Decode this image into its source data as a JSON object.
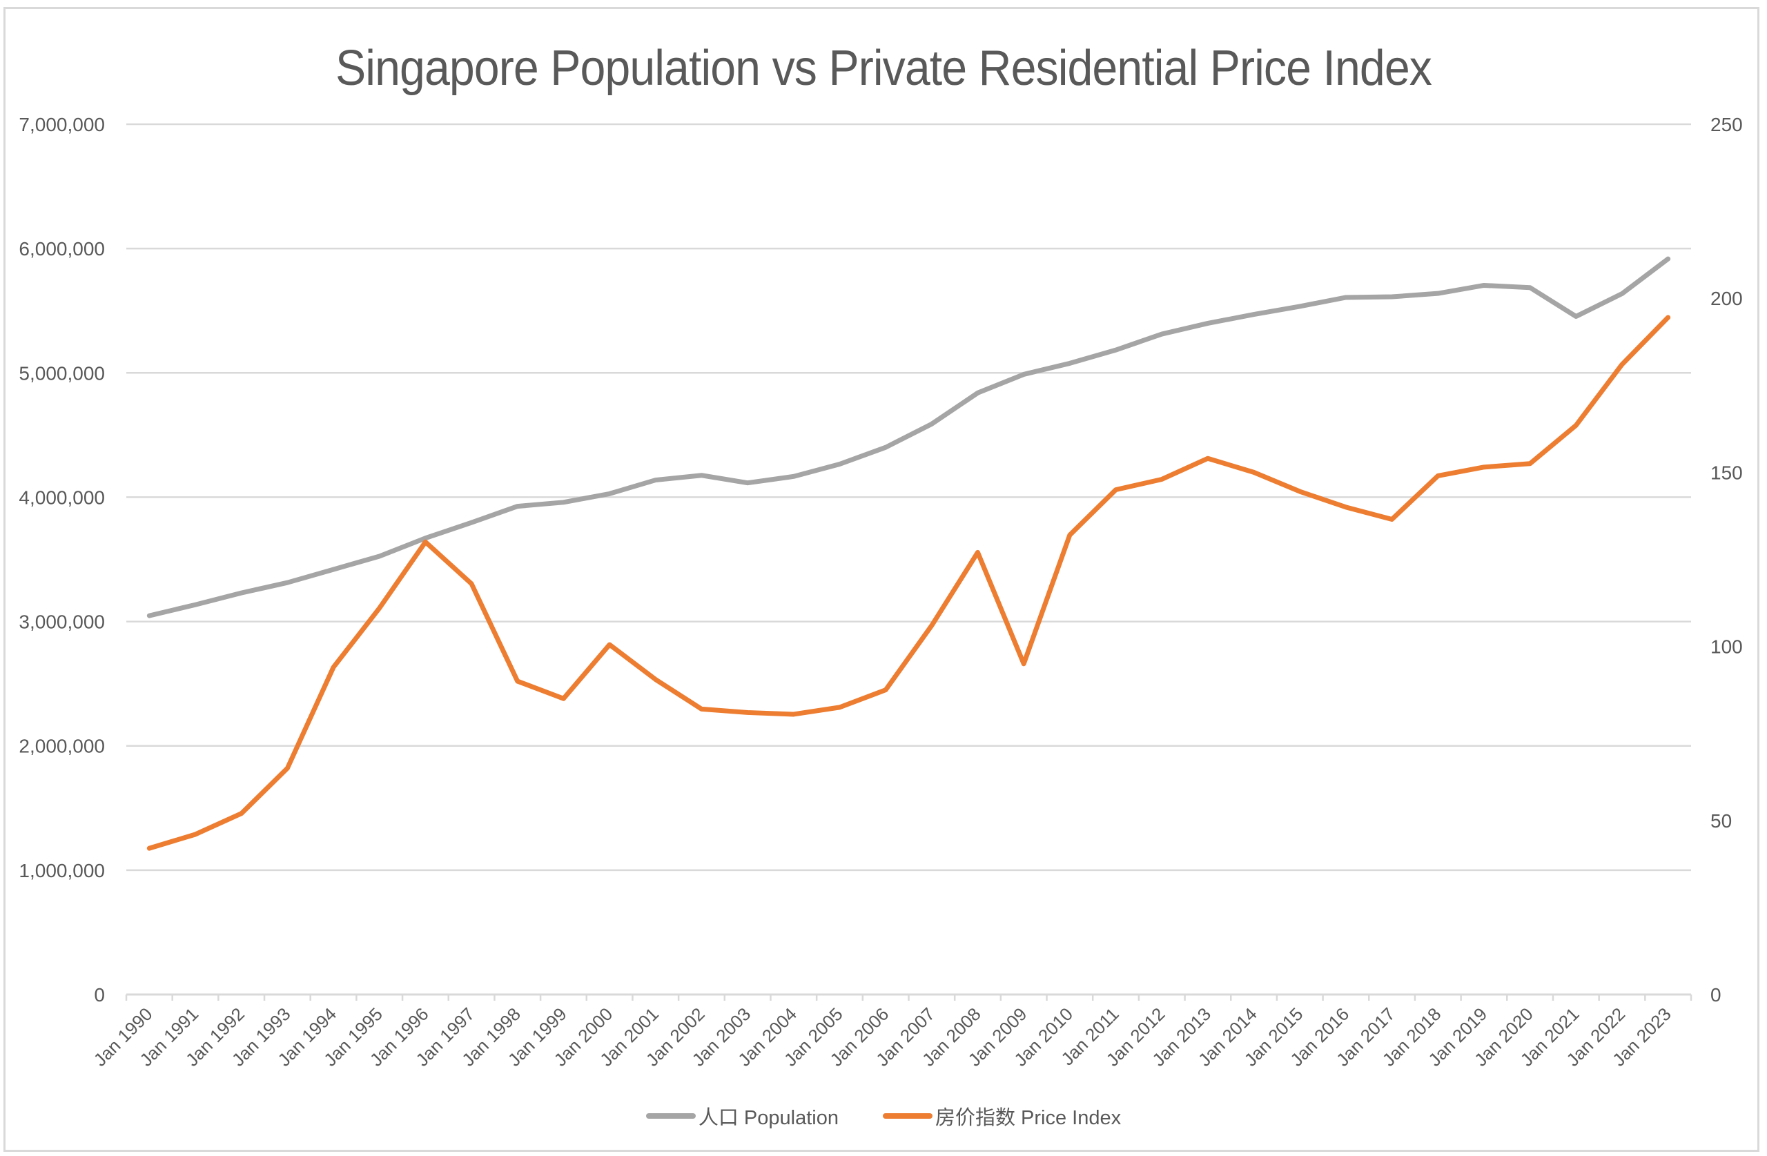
{
  "chart_data": {
    "type": "line",
    "title": "Singapore Population vs Private Residential Price Index",
    "xlabel": "",
    "ylabel": "",
    "categories": [
      "Jan 1990",
      "Jan 1991",
      "Jan 1992",
      "Jan 1993",
      "Jan 1994",
      "Jan 1995",
      "Jan 1996",
      "Jan 1997",
      "Jan 1998",
      "Jan 1999",
      "Jan 2000",
      "Jan 2001",
      "Jan 2002",
      "Jan 2003",
      "Jan 2004",
      "Jan 2005",
      "Jan 2006",
      "Jan 2007",
      "Jan 2008",
      "Jan 2009",
      "Jan 2010",
      "Jan 2011",
      "Jan 2012",
      "Jan 2013",
      "Jan 2014",
      "Jan 2015",
      "Jan 2016",
      "Jan 2017",
      "Jan 2018",
      "Jan 2019",
      "Jan 2020",
      "Jan 2021",
      "Jan 2022",
      "Jan 2023"
    ],
    "series": [
      {
        "name": "人口 Population",
        "axis": "left",
        "color": "#A5A5A5",
        "values": [
          3047000,
          3135000,
          3230000,
          3313000,
          3419000,
          3525000,
          3671000,
          3796000,
          3927000,
          3959000,
          4028000,
          4138000,
          4176000,
          4115000,
          4167000,
          4266000,
          4401000,
          4589000,
          4839000,
          4988000,
          5077000,
          5184000,
          5312000,
          5399000,
          5470000,
          5535000,
          5607000,
          5612000,
          5639000,
          5704000,
          5686000,
          5454000,
          5637000,
          5917000
        ]
      },
      {
        "name": "房价指数 Price Index",
        "axis": "right",
        "color": "#ED7D31",
        "values": [
          42,
          46,
          52,
          65,
          94,
          111,
          130,
          118,
          90,
          85,
          100.5,
          90.5,
          82,
          81,
          80.5,
          82.5,
          87.5,
          106,
          127,
          95,
          132,
          145,
          148,
          154,
          150,
          144.5,
          140,
          136.5,
          149,
          151.5,
          152.5,
          163.5,
          181,
          194.5
        ]
      }
    ],
    "y_left": {
      "ylim": [
        0,
        7000000
      ],
      "ticks": [
        0,
        1000000,
        2000000,
        3000000,
        4000000,
        5000000,
        6000000,
        7000000
      ],
      "tick_labels": [
        "0",
        "1,000,000",
        "2,000,000",
        "3,000,000",
        "4,000,000",
        "5,000,000",
        "6,000,000",
        "7,000,000"
      ]
    },
    "y_right": {
      "ylim": [
        0,
        250
      ],
      "ticks": [
        0,
        50,
        100,
        150,
        200,
        250
      ],
      "tick_labels": [
        "0",
        "50",
        "100",
        "150",
        "200",
        "250"
      ]
    },
    "grid": true,
    "legend_position": "bottom"
  },
  "colors": {
    "gridline": "#d9d9d9",
    "text": "#595959"
  }
}
